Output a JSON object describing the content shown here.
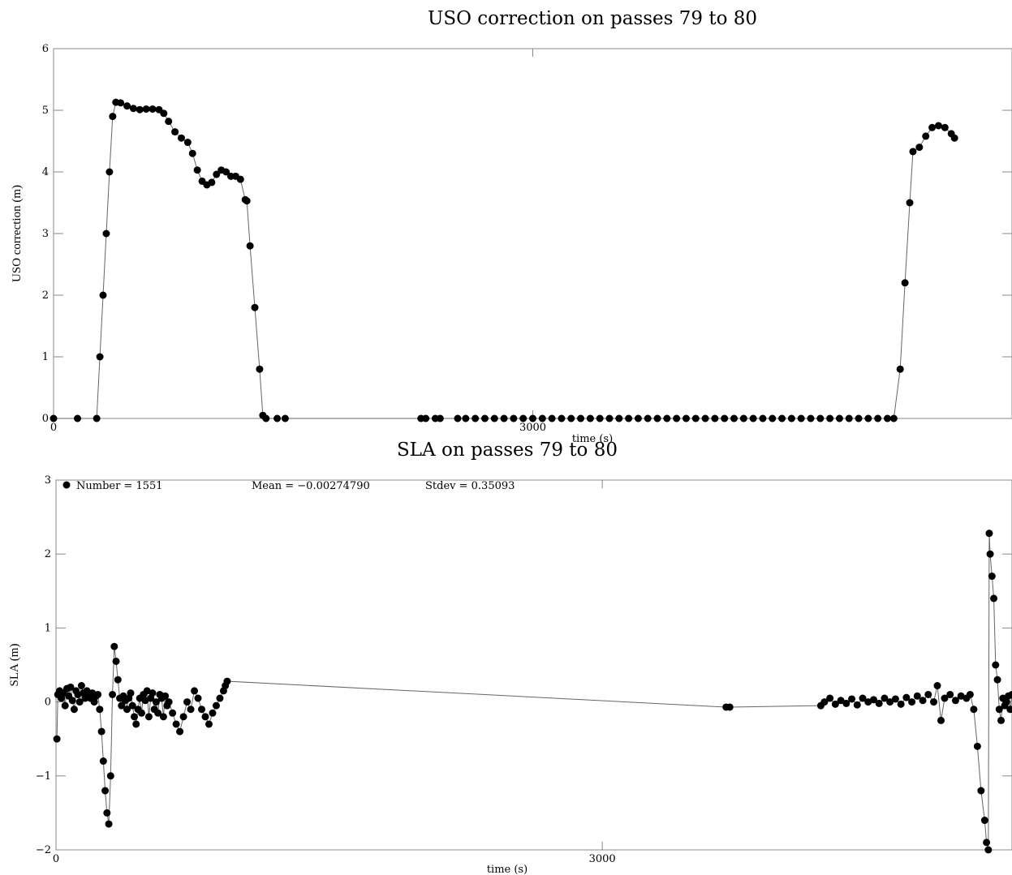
{
  "chart_data": [
    {
      "type": "scatter",
      "title": "USO correction on passes 79 to 80",
      "xlabel": "time (s)",
      "ylabel": "USO correction (m)",
      "xlim": [
        0,
        6000
      ],
      "ylim": [
        0,
        6
      ],
      "x_ticks": [
        {
          "value": 0,
          "label": "0"
        },
        {
          "value": 3000,
          "label": "3000"
        }
      ],
      "y_ticks": [
        {
          "value": 0,
          "label": "0"
        },
        {
          "value": 1,
          "label": "1"
        },
        {
          "value": 2,
          "label": "2"
        },
        {
          "value": 3,
          "label": "3"
        },
        {
          "value": 4,
          "label": "4"
        },
        {
          "value": 5,
          "label": "5"
        },
        {
          "value": 6,
          "label": "6"
        }
      ],
      "series": [
        {
          "points": [
            [
              0,
              0
            ],
            [
              150,
              0
            ],
            [
              270,
              0
            ],
            [
              290,
              1
            ],
            [
              310,
              2
            ],
            [
              330,
              3
            ],
            [
              350,
              4
            ],
            [
              370,
              4.9
            ],
            [
              390,
              5.13
            ],
            [
              420,
              5.12
            ],
            [
              460,
              5.07
            ],
            [
              500,
              5.03
            ],
            [
              540,
              5.01
            ],
            [
              580,
              5.02
            ],
            [
              620,
              5.02
            ],
            [
              660,
              5.01
            ],
            [
              690,
              4.95
            ],
            [
              720,
              4.82
            ],
            [
              760,
              4.65
            ],
            [
              800,
              4.55
            ],
            [
              840,
              4.48
            ],
            [
              870,
              4.3
            ],
            [
              900,
              4.03
            ],
            [
              930,
              3.85
            ],
            [
              960,
              3.79
            ],
            [
              990,
              3.83
            ],
            [
              1020,
              3.96
            ],
            [
              1050,
              4.03
            ],
            [
              1080,
              4.0
            ],
            [
              1110,
              3.93
            ],
            [
              1140,
              3.93
            ],
            [
              1170,
              3.88
            ],
            [
              1200,
              3.55
            ],
            [
              1210,
              3.53
            ],
            [
              1230,
              2.8
            ],
            [
              1260,
              1.8
            ],
            [
              1290,
              0.8
            ],
            [
              1310,
              0.05
            ],
            [
              1330,
              0
            ],
            [
              1400,
              0
            ],
            [
              1450,
              0
            ],
            [
              2300,
              0
            ],
            [
              2330,
              0
            ],
            [
              2390,
              0
            ],
            [
              2420,
              0
            ],
            [
              2530,
              0
            ],
            [
              2580,
              0
            ],
            [
              2640,
              0
            ],
            [
              2700,
              0
            ],
            [
              2760,
              0
            ],
            [
              2820,
              0
            ],
            [
              2880,
              0
            ],
            [
              2940,
              0
            ],
            [
              3000,
              0
            ],
            [
              3060,
              0
            ],
            [
              3120,
              0
            ],
            [
              3180,
              0
            ],
            [
              3240,
              0
            ],
            [
              3300,
              0
            ],
            [
              3360,
              0
            ],
            [
              3420,
              0
            ],
            [
              3480,
              0
            ],
            [
              3540,
              0
            ],
            [
              3600,
              0
            ],
            [
              3660,
              0
            ],
            [
              3720,
              0
            ],
            [
              3780,
              0
            ],
            [
              3840,
              0
            ],
            [
              3900,
              0
            ],
            [
              3960,
              0
            ],
            [
              4020,
              0
            ],
            [
              4080,
              0
            ],
            [
              4140,
              0
            ],
            [
              4200,
              0
            ],
            [
              4260,
              0
            ],
            [
              4320,
              0
            ],
            [
              4380,
              0
            ],
            [
              4440,
              0
            ],
            [
              4500,
              0
            ],
            [
              4560,
              0
            ],
            [
              4620,
              0
            ],
            [
              4680,
              0
            ],
            [
              4740,
              0
            ],
            [
              4800,
              0
            ],
            [
              4860,
              0
            ],
            [
              4920,
              0
            ],
            [
              4980,
              0
            ],
            [
              5040,
              0
            ],
            [
              5100,
              0
            ],
            [
              5160,
              0
            ],
            [
              5220,
              0
            ],
            [
              5260,
              0
            ],
            [
              5300,
              0.8
            ],
            [
              5330,
              2.2
            ],
            [
              5360,
              3.5
            ],
            [
              5380,
              4.33
            ],
            [
              5420,
              4.4
            ],
            [
              5460,
              4.58
            ],
            [
              5500,
              4.72
            ],
            [
              5540,
              4.75
            ],
            [
              5580,
              4.72
            ],
            [
              5620,
              4.62
            ],
            [
              5640,
              4.55
            ]
          ]
        }
      ]
    },
    {
      "type": "scatter",
      "title": "SLA on passes 79 to 80",
      "xlabel": "time (s)",
      "ylabel": "SLA (m)",
      "xlim": [
        0,
        5250
      ],
      "ylim": [
        -2,
        3
      ],
      "x_ticks": [
        {
          "value": 0,
          "label": "0"
        },
        {
          "value": 3000,
          "label": "3000"
        }
      ],
      "y_ticks": [
        {
          "value": -2,
          "label": "−2"
        },
        {
          "value": -1,
          "label": "−1"
        },
        {
          "value": 0,
          "label": "0"
        },
        {
          "value": 1,
          "label": "1"
        },
        {
          "value": 2,
          "label": "2"
        },
        {
          "value": 3,
          "label": "3"
        }
      ],
      "legend": {
        "label": "Number = 1551",
        "placement": "top-left"
      },
      "stats": {
        "mean": "Mean = −0.00274790",
        "stdev": "Stdev = 0.35093"
      },
      "series": [
        {
          "points": [
            [
              5,
              -0.5
            ],
            [
              10,
              0.1
            ],
            [
              20,
              0.15
            ],
            [
              30,
              0.05
            ],
            [
              40,
              0.12
            ],
            [
              50,
              -0.05
            ],
            [
              60,
              0.18
            ],
            [
              70,
              0.08
            ],
            [
              80,
              0.2
            ],
            [
              90,
              0.02
            ],
            [
              100,
              -0.1
            ],
            [
              110,
              0.15
            ],
            [
              120,
              0.1
            ],
            [
              130,
              0.0
            ],
            [
              140,
              0.22
            ],
            [
              150,
              0.12
            ],
            [
              160,
              0.05
            ],
            [
              170,
              0.15
            ],
            [
              180,
              0.1
            ],
            [
              190,
              0.05
            ],
            [
              200,
              0.12
            ],
            [
              210,
              0.0
            ],
            [
              220,
              0.08
            ],
            [
              230,
              0.1
            ],
            [
              240,
              -0.1
            ],
            [
              250,
              -0.4
            ],
            [
              260,
              -0.8
            ],
            [
              270,
              -1.2
            ],
            [
              280,
              -1.5
            ],
            [
              290,
              -1.65
            ],
            [
              300,
              -1.0
            ],
            [
              310,
              0.1
            ],
            [
              320,
              0.75
            ],
            [
              330,
              0.55
            ],
            [
              340,
              0.3
            ],
            [
              350,
              0.05
            ],
            [
              360,
              -0.05
            ],
            [
              370,
              0.08
            ],
            [
              380,
              0.02
            ],
            [
              390,
              -0.1
            ],
            [
              400,
              0.05
            ],
            [
              410,
              0.12
            ],
            [
              420,
              -0.05
            ],
            [
              430,
              -0.2
            ],
            [
              440,
              -0.3
            ],
            [
              450,
              -0.1
            ],
            [
              460,
              0.05
            ],
            [
              470,
              -0.15
            ],
            [
              480,
              0.1
            ],
            [
              490,
              0.02
            ],
            [
              500,
              0.15
            ],
            [
              510,
              -0.2
            ],
            [
              520,
              0.05
            ],
            [
              530,
              0.12
            ],
            [
              540,
              -0.1
            ],
            [
              550,
              0.0
            ],
            [
              560,
              -0.15
            ],
            [
              570,
              0.1
            ],
            [
              580,
              0.05
            ],
            [
              590,
              -0.2
            ],
            [
              600,
              0.08
            ],
            [
              610,
              -0.05
            ],
            [
              620,
              0.0
            ],
            [
              640,
              -0.15
            ],
            [
              660,
              -0.3
            ],
            [
              680,
              -0.4
            ],
            [
              700,
              -0.2
            ],
            [
              720,
              0.0
            ],
            [
              740,
              -0.1
            ],
            [
              760,
              0.15
            ],
            [
              780,
              0.05
            ],
            [
              800,
              -0.1
            ],
            [
              820,
              -0.2
            ],
            [
              840,
              -0.3
            ],
            [
              860,
              -0.15
            ],
            [
              880,
              -0.05
            ],
            [
              900,
              0.05
            ],
            [
              920,
              0.15
            ],
            [
              930,
              0.22
            ],
            [
              940,
              0.28
            ],
            [
              3680,
              -0.07
            ],
            [
              3700,
              -0.07
            ],
            [
              4200,
              -0.05
            ],
            [
              4220,
              0.0
            ],
            [
              4250,
              0.05
            ],
            [
              4280,
              -0.03
            ],
            [
              4310,
              0.02
            ],
            [
              4340,
              -0.02
            ],
            [
              4370,
              0.04
            ],
            [
              4400,
              -0.04
            ],
            [
              4430,
              0.05
            ],
            [
              4460,
              0.0
            ],
            [
              4490,
              0.03
            ],
            [
              4520,
              -0.02
            ],
            [
              4550,
              0.05
            ],
            [
              4580,
              0.0
            ],
            [
              4610,
              0.04
            ],
            [
              4640,
              -0.03
            ],
            [
              4670,
              0.06
            ],
            [
              4700,
              0.0
            ],
            [
              4730,
              0.08
            ],
            [
              4760,
              0.02
            ],
            [
              4790,
              0.1
            ],
            [
              4820,
              0.0
            ],
            [
              4840,
              0.22
            ],
            [
              4860,
              -0.25
            ],
            [
              4880,
              0.05
            ],
            [
              4910,
              0.1
            ],
            [
              4940,
              0.02
            ],
            [
              4970,
              0.08
            ],
            [
              5000,
              0.05
            ],
            [
              5020,
              0.1
            ],
            [
              5040,
              -0.1
            ],
            [
              5060,
              -0.6
            ],
            [
              5080,
              -1.2
            ],
            [
              5100,
              -1.6
            ],
            [
              5110,
              -1.9
            ],
            [
              5120,
              -2.0
            ],
            [
              5125,
              2.28
            ],
            [
              5130,
              2.0
            ],
            [
              5140,
              1.7
            ],
            [
              5150,
              1.4
            ],
            [
              5160,
              0.5
            ],
            [
              5170,
              0.3
            ],
            [
              5180,
              -0.1
            ],
            [
              5190,
              -0.25
            ],
            [
              5200,
              0.05
            ],
            [
              5210,
              -0.05
            ],
            [
              5220,
              0.0
            ],
            [
              5230,
              0.08
            ],
            [
              5240,
              -0.1
            ],
            [
              5250,
              0.1
            ]
          ]
        }
      ]
    }
  ]
}
